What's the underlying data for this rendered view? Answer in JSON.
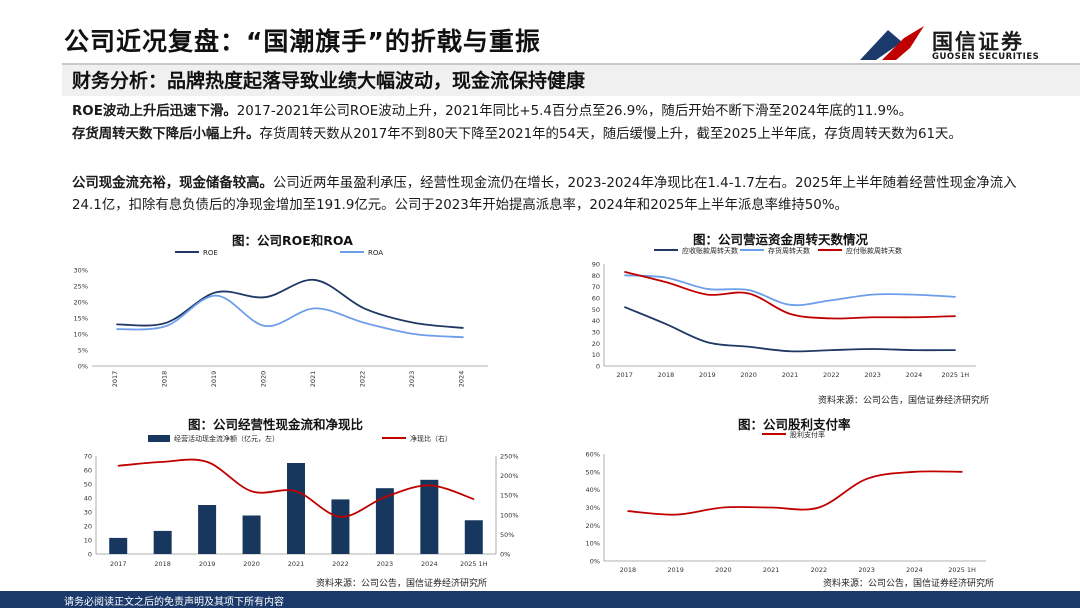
{
  "header": {
    "title": "公司近况复盘：“国潮旗手”的折戟与重振",
    "subtitle": "财务分析：品牌热度起落导致业绩大幅波动，现金流保持健康",
    "logo_cn": "国信证券",
    "logo_en": "GUOSEN SECURITIES"
  },
  "paragraphs": {
    "p1_bold": "ROE波动上升后迅速下滑。",
    "p1_text": "2017-2021年公司ROE波动上升，2021年同比+5.4百分点至26.9%，随后开始不断下滑至2024年底的11.9%。",
    "p2_bold": "存货周转天数下降后小幅上升。",
    "p2_text": "存货周转天数从2017年不到80天下降至2021年的54天，随后缓慢上升，截至2025上半年底，存货周转天数为61天。",
    "p3_bold": "公司现金流充裕，现金储备较高。",
    "p3_text": "公司近两年虽盈利承压，经营性现金流仍在增长，2023-2024年净现比在1.4-1.7左右。2025年上半年随着经营性现金净流入24.1亿，扣除有息负债后的净现金增加至191.9亿元。公司于2023年开始提高派息率，2024年和2025年上半年派息率维持50%。"
  },
  "colors": {
    "navy": "#1f3864",
    "light_blue": "#6d9eeb",
    "red": "#c00000",
    "bar": "#17375e",
    "footer": "#1b3a6b"
  },
  "chart_data": [
    {
      "type": "line",
      "title": "图：公司ROE和ROA",
      "categories": [
        "2017",
        "2018",
        "2019",
        "2020",
        "2021",
        "2022",
        "2023",
        "2024"
      ],
      "series": [
        {
          "name": "ROE",
          "values": [
            13.0,
            13.5,
            23.0,
            21.5,
            26.9,
            18.0,
            13.5,
            11.9
          ]
        },
        {
          "name": "ROA",
          "values": [
            11.5,
            12.5,
            22.0,
            12.5,
            18.0,
            13.5,
            10.0,
            9.0
          ]
        }
      ],
      "yticks": [
        "0%",
        "5%",
        "10%",
        "15%",
        "20%",
        "25%",
        "30%"
      ],
      "ylim": [
        0,
        30
      ],
      "source": ""
    },
    {
      "type": "line",
      "title": "图：公司营运资金周转天数情况",
      "categories": [
        "2017",
        "2018",
        "2019",
        "2020",
        "2021",
        "2022",
        "2023",
        "2024",
        "2025 1H"
      ],
      "series": [
        {
          "name": "应收账款周转天数",
          "values": [
            52,
            37,
            21,
            17,
            13,
            14,
            15,
            14,
            14
          ]
        },
        {
          "name": "存货周转天数",
          "values": [
            80,
            78,
            68,
            67,
            54,
            58,
            63,
            63,
            61
          ]
        },
        {
          "name": "应付账款周转天数",
          "values": [
            83,
            74,
            63,
            64,
            46,
            42,
            43,
            43,
            44
          ]
        }
      ],
      "yticks": [
        "0",
        "10",
        "20",
        "30",
        "40",
        "50",
        "60",
        "70",
        "80",
        "90"
      ],
      "ylim": [
        0,
        90
      ],
      "source": "资料来源：公司公告，国信证券经济研究所"
    },
    {
      "type": "bar+line",
      "title": "图：公司经营性现金流和净现比",
      "categories": [
        "2017",
        "2018",
        "2019",
        "2020",
        "2021",
        "2022",
        "2023",
        "2024",
        "2025 1H"
      ],
      "series": [
        {
          "name": "经营活动现金流净额（亿元，左）",
          "values": [
            11.5,
            16.5,
            35.0,
            27.5,
            65.0,
            39.0,
            47.0,
            53.0,
            24.1
          ]
        },
        {
          "name": "净现比（右）",
          "values": [
            2.25,
            2.35,
            2.35,
            1.6,
            1.6,
            0.95,
            1.45,
            1.75,
            1.4
          ]
        }
      ],
      "yticks_left": [
        "0",
        "10",
        "20",
        "30",
        "40",
        "50",
        "60",
        "70"
      ],
      "yticks_right": [
        "0%",
        "50%",
        "100%",
        "150%",
        "200%",
        "250%"
      ],
      "ylim_left": [
        0,
        70
      ],
      "ylim_right": [
        0,
        2.5
      ],
      "source": "资料来源：公司公告，国信证券经济研究所"
    },
    {
      "type": "line",
      "title": "图：公司股利支付率",
      "categories": [
        "2018",
        "2019",
        "2020",
        "2021",
        "2022",
        "2023",
        "2024",
        "2025 1H"
      ],
      "series": [
        {
          "name": "股利支付率",
          "values": [
            28,
            26,
            30,
            30,
            30,
            46,
            50,
            50
          ]
        }
      ],
      "yticks": [
        "0%",
        "10%",
        "20%",
        "30%",
        "40%",
        "50%",
        "60%"
      ],
      "ylim": [
        0,
        60
      ],
      "source": "资料来源：公司公告，国信证券经济研究所"
    }
  ],
  "footer": {
    "text": "请务必阅读正文之后的免责声明及其项下所有内容"
  }
}
